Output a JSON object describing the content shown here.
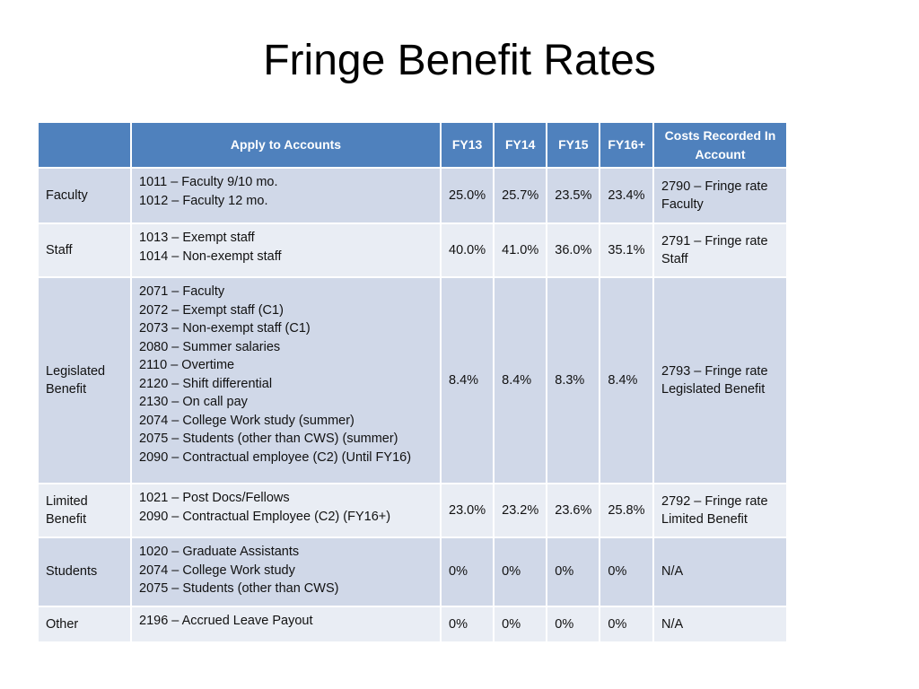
{
  "title": "Fringe Benefit Rates",
  "table": {
    "header": [
      "Apply to Accounts",
      "FY13",
      "FY14",
      "FY15",
      "FY16+",
      "Costs Recorded In Account"
    ],
    "rows": [
      {
        "label": [
          "Faculty"
        ],
        "accounts": [
          "1011 – Faculty 9/10 mo.",
          "1012 – Faculty 12 mo."
        ],
        "rates": [
          "25.0%",
          "25.7%",
          "23.5%",
          "23.4%"
        ],
        "cost": [
          "2790 – Fringe rate",
          "Faculty"
        ]
      },
      {
        "label": [
          "Staff"
        ],
        "accounts": [
          "1013 – Exempt staff",
          "1014 – Non-exempt staff"
        ],
        "rates": [
          "40.0%",
          "41.0%",
          "36.0%",
          "35.1%"
        ],
        "cost": [
          "2791 – Fringe rate",
          "Staff"
        ]
      },
      {
        "label": [
          "Legislated",
          "Benefit"
        ],
        "accounts": [
          "2071 – Faculty",
          "2072 – Exempt staff (C1)",
          "2073 – Non-exempt staff (C1)",
          "2080 – Summer salaries",
          "2110 – Overtime",
          "2120 – Shift differential",
          "2130 – On call pay",
          "2074 – College Work study  (summer)",
          "2075 – Students (other than CWS) (summer)",
          "2090 – Contractual employee (C2) (Until FY16)"
        ],
        "rates": [
          "8.4%",
          "8.4%",
          "8.3%",
          "8.4%"
        ],
        "cost": [
          "2793 – Fringe rate",
          "Legislated Benefit"
        ]
      },
      {
        "label": [
          "Limited",
          "Benefit"
        ],
        "accounts": [
          "1021 – Post Docs/Fellows",
          "2090 – Contractual Employee (C2) (FY16+)"
        ],
        "rates": [
          "23.0%",
          "23.2%",
          "23.6%",
          "25.8%"
        ],
        "cost": [
          "2792 – Fringe rate",
          "Limited Benefit"
        ]
      },
      {
        "label": [
          "Students"
        ],
        "accounts": [
          "1020 – Graduate Assistants",
          "2074 – College Work study",
          "2075 – Students (other than CWS)"
        ],
        "rates": [
          "0%",
          "0%",
          "0%",
          "0%"
        ],
        "cost": [
          "N/A"
        ]
      },
      {
        "label": [
          "Other"
        ],
        "accounts": [
          "2196 – Accrued Leave Payout"
        ],
        "rates": [
          "0%",
          "0%",
          "0%",
          "0%"
        ],
        "cost": [
          "N/A"
        ]
      }
    ]
  }
}
